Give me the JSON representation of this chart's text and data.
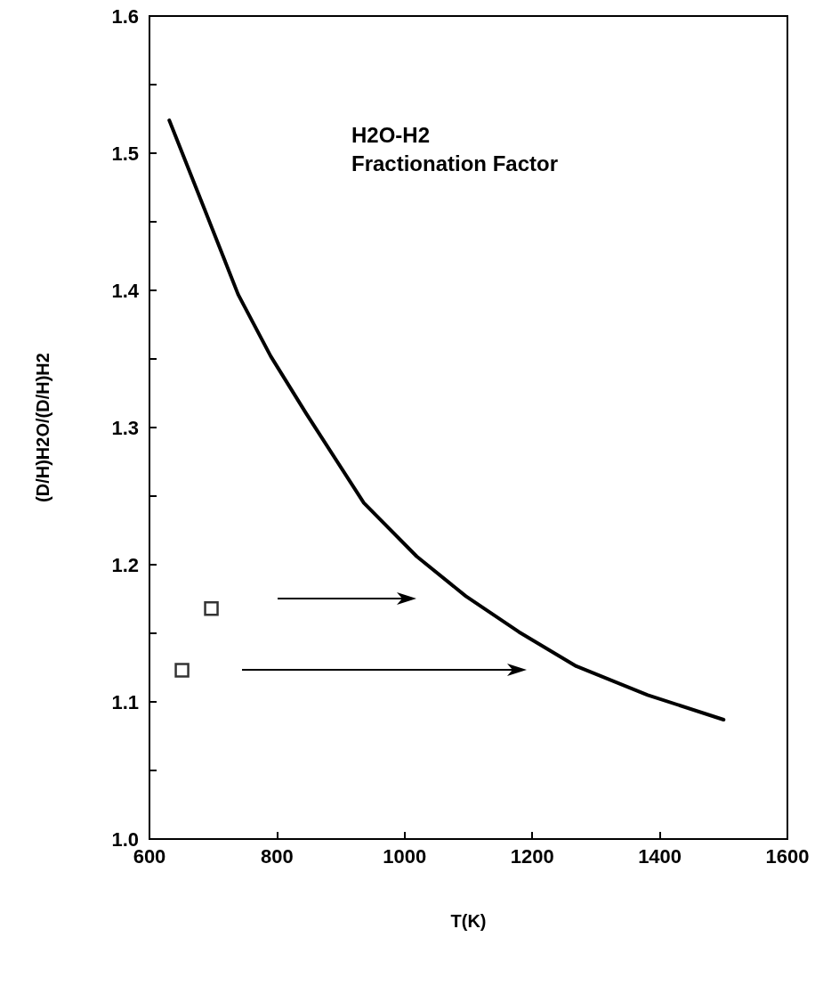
{
  "chart_data": {
    "type": "line",
    "title": "H2O-H2\nFractionation Factor",
    "xlabel": "T(K)",
    "ylabel": "(D/H)H2O/(D/H)H2",
    "xlim": [
      600,
      1600
    ],
    "xticks": [
      600,
      800,
      1000,
      1200,
      1400,
      1600
    ],
    "ylim": [
      1.0,
      1.6
    ],
    "yticks": [
      {
        "value": 1.0,
        "label": "1.0"
      },
      {
        "value": 1.05,
        "label": null
      },
      1.1,
      {
        "value": 1.15,
        "label": null
      },
      1.2,
      {
        "value": 1.25,
        "label": null
      },
      1.3,
      {
        "value": 1.35,
        "label": null
      },
      1.4,
      {
        "value": 1.45,
        "label": null
      },
      1.5,
      {
        "value": 1.55,
        "label": null
      },
      1.6
    ],
    "grid": false,
    "series": [
      {
        "color": "#000000",
        "marker": "none",
        "line_style": "solid",
        "x": [
          631,
          689,
          739,
          790,
          846,
          936,
          1019,
          1096,
          1179,
          1269,
          1381,
          1500
        ],
        "values": [
          1.524,
          1.456,
          1.397,
          1.352,
          1.31,
          1.245,
          1.206,
          1.177,
          1.151,
          1.126,
          1.105,
          1.087
        ]
      },
      {
        "type": "scatter",
        "color": "#000000",
        "marker": "square",
        "x": [
          651,
          697
        ],
        "values": [
          1.123,
          1.168
        ]
      }
    ]
  }
}
